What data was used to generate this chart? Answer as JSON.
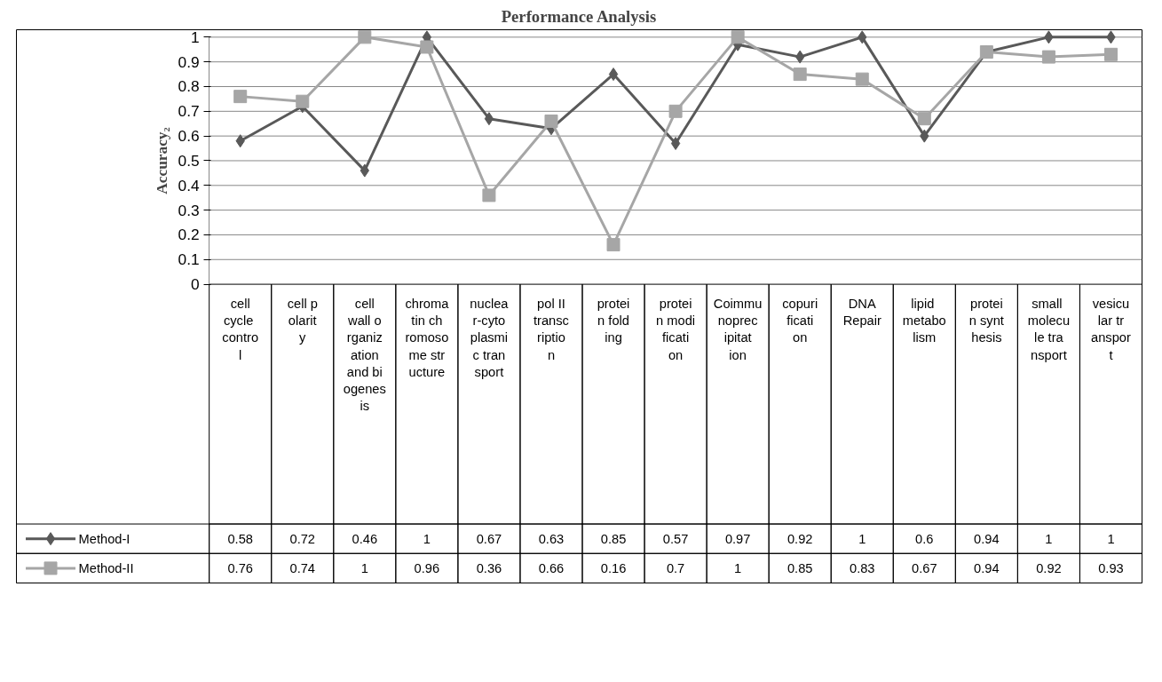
{
  "chart_data": {
    "type": "line",
    "title": "Performance Analysis",
    "ylabel": "Accuracy₂",
    "categories": [
      "cell cycle control",
      "cell polarity",
      "cell wall organization and biogenesis",
      "chromatin chromosome structure",
      "nuclear-cytoplasmic transport",
      "pol II transcription",
      "protein folding",
      "protein modification",
      "Coimmunoprecipitation",
      "copurification",
      "DNA Repair",
      "lipid metabolism",
      "protein synthesis",
      "small molecule transport",
      "vesicular transport"
    ],
    "series": [
      {
        "name": "Method-I",
        "color": "#595959",
        "marker": "diamond",
        "values": [
          0.58,
          0.72,
          0.46,
          1,
          0.67,
          0.63,
          0.85,
          0.57,
          0.97,
          0.92,
          1,
          0.6,
          0.94,
          1,
          1
        ]
      },
      {
        "name": "Method-II",
        "color": "#a6a6a6",
        "marker": "square",
        "values": [
          0.76,
          0.74,
          1,
          0.96,
          0.36,
          0.66,
          0.16,
          0.7,
          1,
          0.85,
          0.83,
          0.67,
          0.94,
          0.92,
          0.93
        ]
      }
    ],
    "ylim": [
      0,
      1
    ],
    "yticks": [
      0,
      0.1,
      0.2,
      0.3,
      0.4,
      0.5,
      0.6,
      0.7,
      0.8,
      0.9,
      1
    ],
    "grid": "y",
    "legend": "bottom",
    "data_labels": true,
    "tick_labels": "y"
  }
}
